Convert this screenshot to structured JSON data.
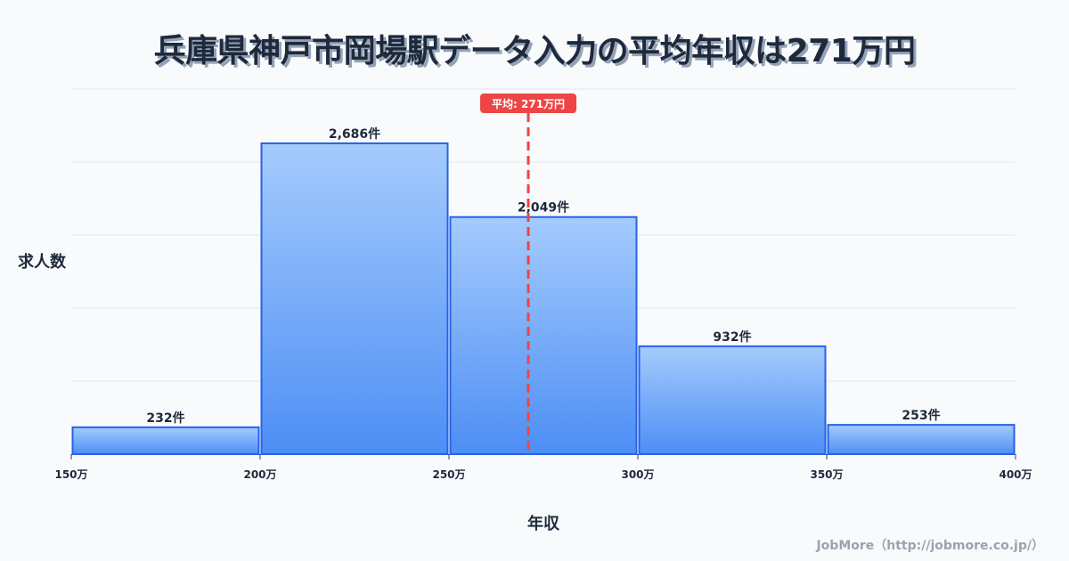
{
  "title": "兵庫県神戸市岡場駅データ入力の平均年収は271万円",
  "credit": "JobMore（http://jobmore.co.jp/）",
  "axes": {
    "ylabel": "求人数",
    "xlabel": "年収"
  },
  "mean": {
    "value": 271,
    "label": "平均: 271万円",
    "color": "#ef4444"
  },
  "colors": {
    "bar_fill_top": "#a5cbfc",
    "bar_fill_bottom": "#4d8ef5",
    "bar_stroke": "#2563eb",
    "grid": "#e2e8f0",
    "text": "#1e293b"
  },
  "chart_data": {
    "type": "bar",
    "title": "兵庫県神戸市岡場駅データ入力の平均年収は271万円",
    "xlabel": "年収",
    "ylabel": "求人数",
    "bins": [
      [
        150,
        200
      ],
      [
        200,
        250
      ],
      [
        250,
        300
      ],
      [
        300,
        350
      ],
      [
        350,
        400
      ]
    ],
    "categories": [
      "150-200万",
      "200-250万",
      "250-300万",
      "300-350万",
      "350-400万"
    ],
    "values": [
      232,
      2686,
      2049,
      932,
      253
    ],
    "value_labels": [
      "232件",
      "2,686件",
      "2,049件",
      "932件",
      "253件"
    ],
    "x_ticks": [
      "150万",
      "200万",
      "250万",
      "300万",
      "350万",
      "400万"
    ],
    "xlim": [
      150,
      400
    ],
    "ylim": [
      0,
      3155
    ],
    "grid": true,
    "mean_line": {
      "x": 271,
      "label": "平均: 271万円"
    },
    "legend": null
  }
}
